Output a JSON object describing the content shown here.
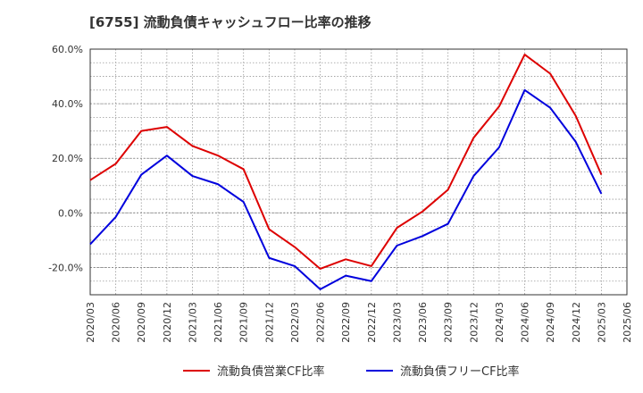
{
  "chart_data": {
    "type": "line",
    "title": "[6755]  流動負債キャッシュフロー比率の推移",
    "xlabel": "",
    "ylabel": "",
    "ylim": [
      -30,
      60
    ],
    "yticks": [
      -20,
      0,
      20,
      40,
      60
    ],
    "ytick_labels": [
      "-20.0%",
      "0.0%",
      "20.0%",
      "40.0%",
      "60.0%"
    ],
    "grid": true,
    "legend_position": "bottom",
    "x": [
      "2020/03",
      "2020/06",
      "2020/09",
      "2020/12",
      "2021/03",
      "2021/06",
      "2021/09",
      "2021/12",
      "2022/03",
      "2022/06",
      "2022/09",
      "2022/12",
      "2023/03",
      "2023/06",
      "2023/09",
      "2023/12",
      "2024/03",
      "2024/06",
      "2024/09",
      "2024/12",
      "2025/03",
      "2025/06"
    ],
    "series": [
      {
        "name": "流動負債営業CF比率",
        "color": "#dd0000",
        "values": [
          12.0,
          18.0,
          30.0,
          31.5,
          24.5,
          21.0,
          16.0,
          -6.0,
          -12.5,
          -20.5,
          -17.0,
          -19.5,
          -5.5,
          0.5,
          8.5,
          27.5,
          39.0,
          58.0,
          51.0,
          35.5,
          14.0,
          null
        ]
      },
      {
        "name": "流動負債フリーCF比率",
        "color": "#0000dd",
        "values": [
          -11.5,
          -1.5,
          14.0,
          21.0,
          13.5,
          10.5,
          4.0,
          -16.5,
          -19.5,
          -28.0,
          -23.0,
          -25.0,
          -12.0,
          -8.5,
          -4.0,
          13.5,
          24.0,
          45.0,
          38.5,
          26.0,
          7.0,
          null
        ]
      }
    ]
  }
}
